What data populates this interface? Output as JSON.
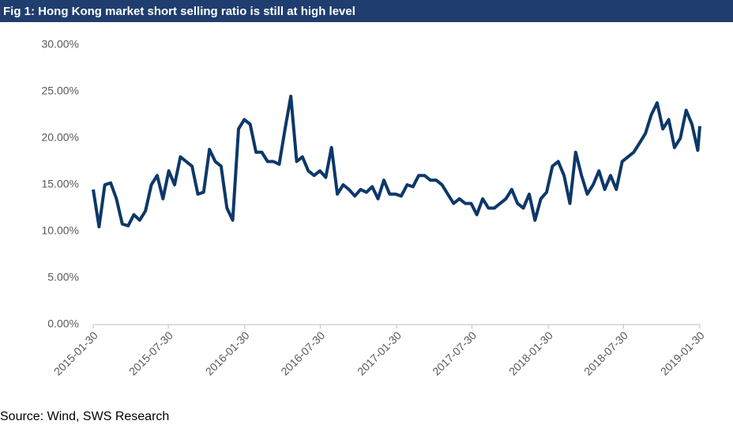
{
  "chart_data": {
    "type": "line",
    "title": "Fig 1: Hong Kong market short selling ratio is still at high level",
    "source": "Source: Wind, SWS Research",
    "x": [
      "2015-01-30",
      "2015-02-13",
      "2015-02-27",
      "2015-03-13",
      "2015-03-27",
      "2015-04-10",
      "2015-04-24",
      "2015-05-08",
      "2015-05-22",
      "2015-06-05",
      "2015-06-19",
      "2015-07-03",
      "2015-07-17",
      "2015-07-31",
      "2015-08-14",
      "2015-08-28",
      "2015-09-11",
      "2015-09-25",
      "2015-10-09",
      "2015-10-23",
      "2015-11-06",
      "2015-11-20",
      "2015-12-04",
      "2015-12-18",
      "2016-01-01",
      "2016-01-15",
      "2016-01-29",
      "2016-02-12",
      "2016-02-26",
      "2016-03-11",
      "2016-03-25",
      "2016-04-08",
      "2016-04-22",
      "2016-05-06",
      "2016-05-20",
      "2016-06-03",
      "2016-06-17",
      "2016-07-01",
      "2016-07-15",
      "2016-07-29",
      "2016-08-12",
      "2016-08-26",
      "2016-09-09",
      "2016-09-23",
      "2016-10-07",
      "2016-10-21",
      "2016-11-04",
      "2016-11-18",
      "2016-12-02",
      "2016-12-16",
      "2016-12-30",
      "2017-01-13",
      "2017-01-27",
      "2017-02-10",
      "2017-02-24",
      "2017-03-10",
      "2017-03-24",
      "2017-04-07",
      "2017-04-21",
      "2017-05-05",
      "2017-05-19",
      "2017-06-02",
      "2017-06-16",
      "2017-06-30",
      "2017-07-14",
      "2017-07-28",
      "2017-08-11",
      "2017-08-25",
      "2017-09-08",
      "2017-09-22",
      "2017-10-06",
      "2017-10-20",
      "2017-11-03",
      "2017-11-17",
      "2017-12-01",
      "2017-12-15",
      "2017-12-29",
      "2018-01-12",
      "2018-01-26",
      "2018-02-09",
      "2018-02-23",
      "2018-03-09",
      "2018-03-23",
      "2018-04-06",
      "2018-04-20",
      "2018-05-04",
      "2018-05-18",
      "2018-06-01",
      "2018-06-15",
      "2018-06-29",
      "2018-07-13",
      "2018-07-27",
      "2018-08-10",
      "2018-08-24",
      "2018-09-07",
      "2018-09-21",
      "2018-10-05",
      "2018-10-19",
      "2018-11-02",
      "2018-11-16",
      "2018-11-30",
      "2018-12-14",
      "2018-12-28",
      "2019-01-11",
      "2019-01-25",
      "2019-01-30"
    ],
    "series": [
      {
        "color": "#0d3868",
        "values": [
          14.5,
          10.5,
          15,
          15.2,
          13.5,
          10.8,
          10.6,
          11.8,
          11.2,
          12.2,
          15,
          16,
          13.5,
          16.5,
          15,
          18,
          17.5,
          17,
          14,
          14.2,
          18.8,
          17.5,
          17,
          12.5,
          11.2,
          21,
          22,
          21.5,
          18.5,
          18.5,
          17.5,
          17.5,
          17.2,
          21,
          24.5,
          17.5,
          18,
          16.5,
          16,
          16.5,
          15.8,
          19,
          14,
          15,
          14.5,
          13.8,
          14.5,
          14.2,
          14.8,
          13.5,
          15.5,
          14,
          14,
          13.8,
          15,
          14.8,
          16,
          16,
          15.5,
          15.5,
          15,
          14,
          13,
          13.5,
          13,
          13,
          11.8,
          13.5,
          12.5,
          12.5,
          13,
          13.5,
          14.5,
          13,
          12.5,
          14,
          11.2,
          13.5,
          14.2,
          17,
          17.5,
          16,
          13,
          18.5,
          16,
          14,
          15,
          16.5,
          14.5,
          16,
          14.5,
          17.5,
          18,
          18.5,
          19.5,
          20.5,
          22.5,
          23.8,
          21,
          22,
          19,
          20,
          23,
          21.5,
          18.7,
          21.3
        ]
      }
    ],
    "xlim": [
      "2015-01-30",
      "2019-01-30"
    ],
    "xticks": [
      "2015-01-30",
      "2015-07-30",
      "2016-01-30",
      "2016-07-30",
      "2017-01-30",
      "2017-07-30",
      "2018-01-30",
      "2018-07-30",
      "2019-01-30"
    ],
    "ylim": [
      0,
      30
    ],
    "yticks": [
      {
        "value": 0,
        "label": "0.00%"
      },
      {
        "value": 5,
        "label": "5.00%"
      },
      {
        "value": 10,
        "label": "10.00%"
      },
      {
        "value": 15,
        "label": "15.00%"
      },
      {
        "value": 20,
        "label": "20.00%"
      },
      {
        "value": 25,
        "label": "25.00%"
      },
      {
        "value": 30,
        "label": "30.00%"
      }
    ]
  }
}
